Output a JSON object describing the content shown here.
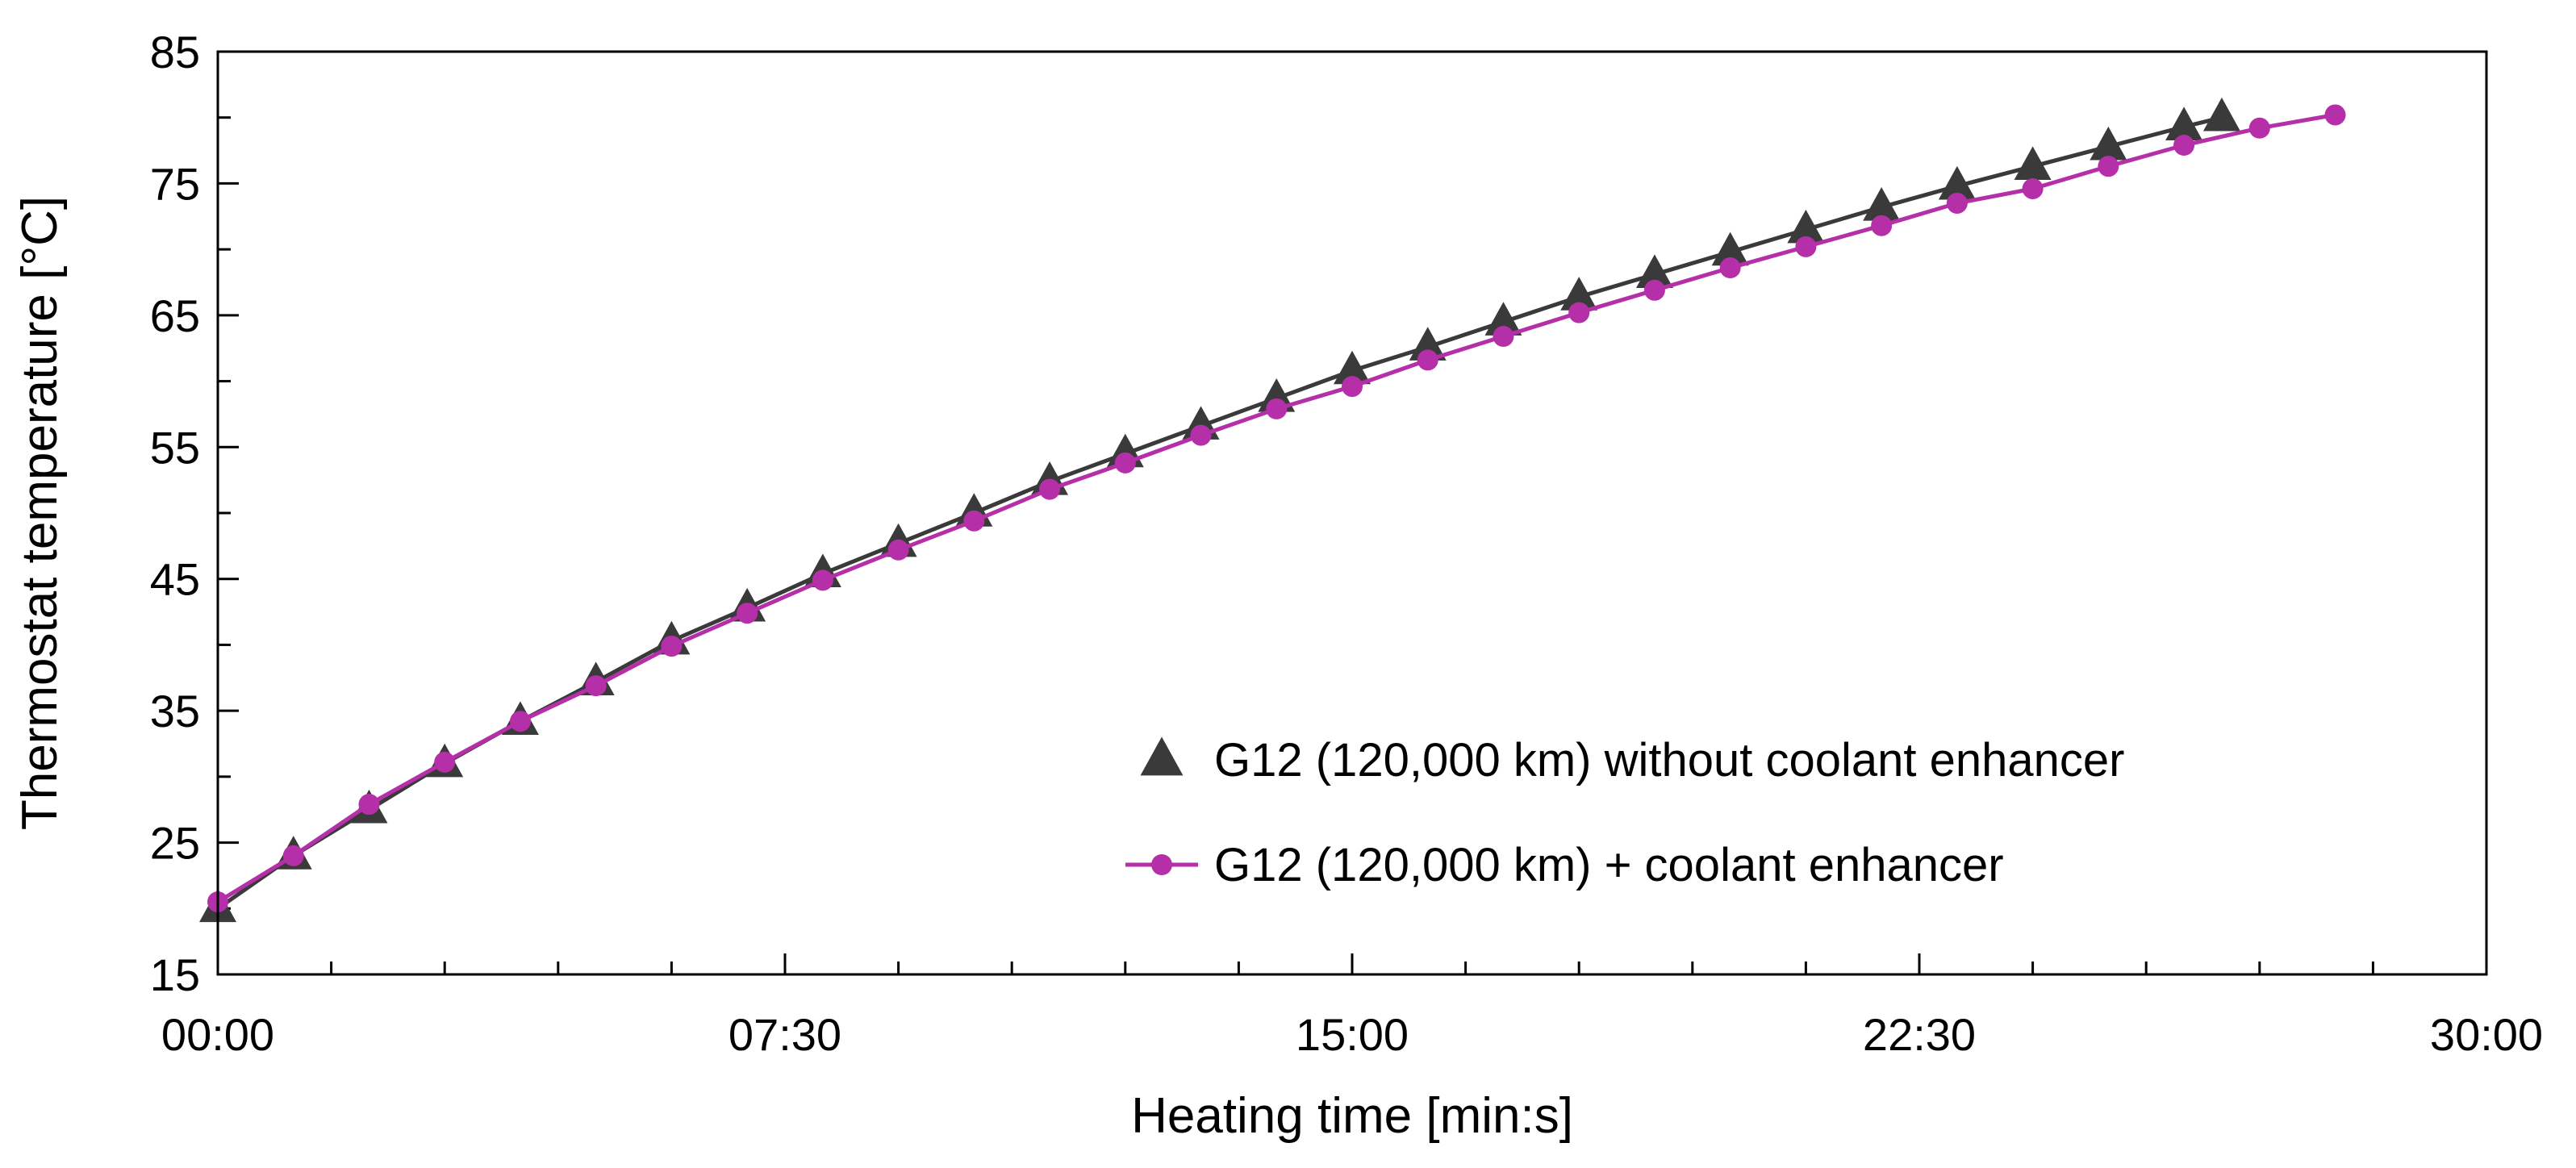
{
  "chart_data": {
    "type": "line",
    "title": "",
    "xlabel": "Heating time [min:s]",
    "ylabel": "Thermostat temperature [°C]",
    "xlim": [
      0,
      30
    ],
    "ylim": [
      15,
      85
    ],
    "x_unit": "minutes",
    "x_ticks": [
      0,
      7.5,
      15,
      22.5,
      30
    ],
    "x_tick_labels": [
      "00:00",
      "07:30",
      "15:00",
      "22:30",
      "30:00"
    ],
    "x_minor_step": 1.5,
    "y_ticks": [
      15,
      25,
      35,
      45,
      55,
      65,
      75,
      85
    ],
    "y_tick_labels": [
      "15",
      "25",
      "35",
      "45",
      "55",
      "65",
      "75",
      "85"
    ],
    "y_minor_step": 5,
    "grid": false,
    "legend_position": "bottom-right",
    "series": [
      {
        "name": "G12 (120,000 km) without coolant enhancer",
        "marker": "triangle",
        "color": "#3a3a3a",
        "x": [
          0,
          1,
          2,
          3,
          4,
          5,
          6,
          7,
          8,
          9,
          10,
          11,
          12,
          13,
          14,
          15,
          16,
          17,
          18,
          19,
          20,
          21,
          22,
          23,
          24,
          25,
          26,
          26.5
        ],
        "y": [
          20.0,
          24.0,
          27.5,
          31.0,
          34.2,
          37.2,
          40.3,
          42.8,
          45.4,
          47.7,
          50.0,
          52.4,
          54.5,
          56.6,
          58.7,
          60.8,
          62.6,
          64.5,
          66.4,
          68.1,
          69.8,
          71.5,
          73.2,
          74.8,
          76.3,
          77.8,
          79.3,
          80.0
        ]
      },
      {
        "name": "G12 (120,000 km) + coolant enhancer",
        "marker": "circle",
        "color": "#b52fa8",
        "x": [
          0,
          1,
          2,
          3,
          4,
          5,
          6,
          7,
          8,
          9,
          10,
          11,
          12,
          13,
          14,
          15,
          16,
          17,
          18,
          19,
          20,
          21,
          22,
          23,
          24,
          25,
          26,
          27,
          28
        ],
        "y": [
          20.5,
          24.0,
          27.9,
          31.1,
          34.2,
          36.9,
          39.9,
          42.4,
          44.9,
          47.2,
          49.4,
          51.8,
          53.8,
          55.9,
          57.9,
          59.6,
          61.6,
          63.4,
          65.2,
          66.9,
          68.6,
          70.2,
          71.8,
          73.5,
          74.6,
          76.3,
          77.9,
          79.2,
          80.2
        ]
      }
    ]
  }
}
